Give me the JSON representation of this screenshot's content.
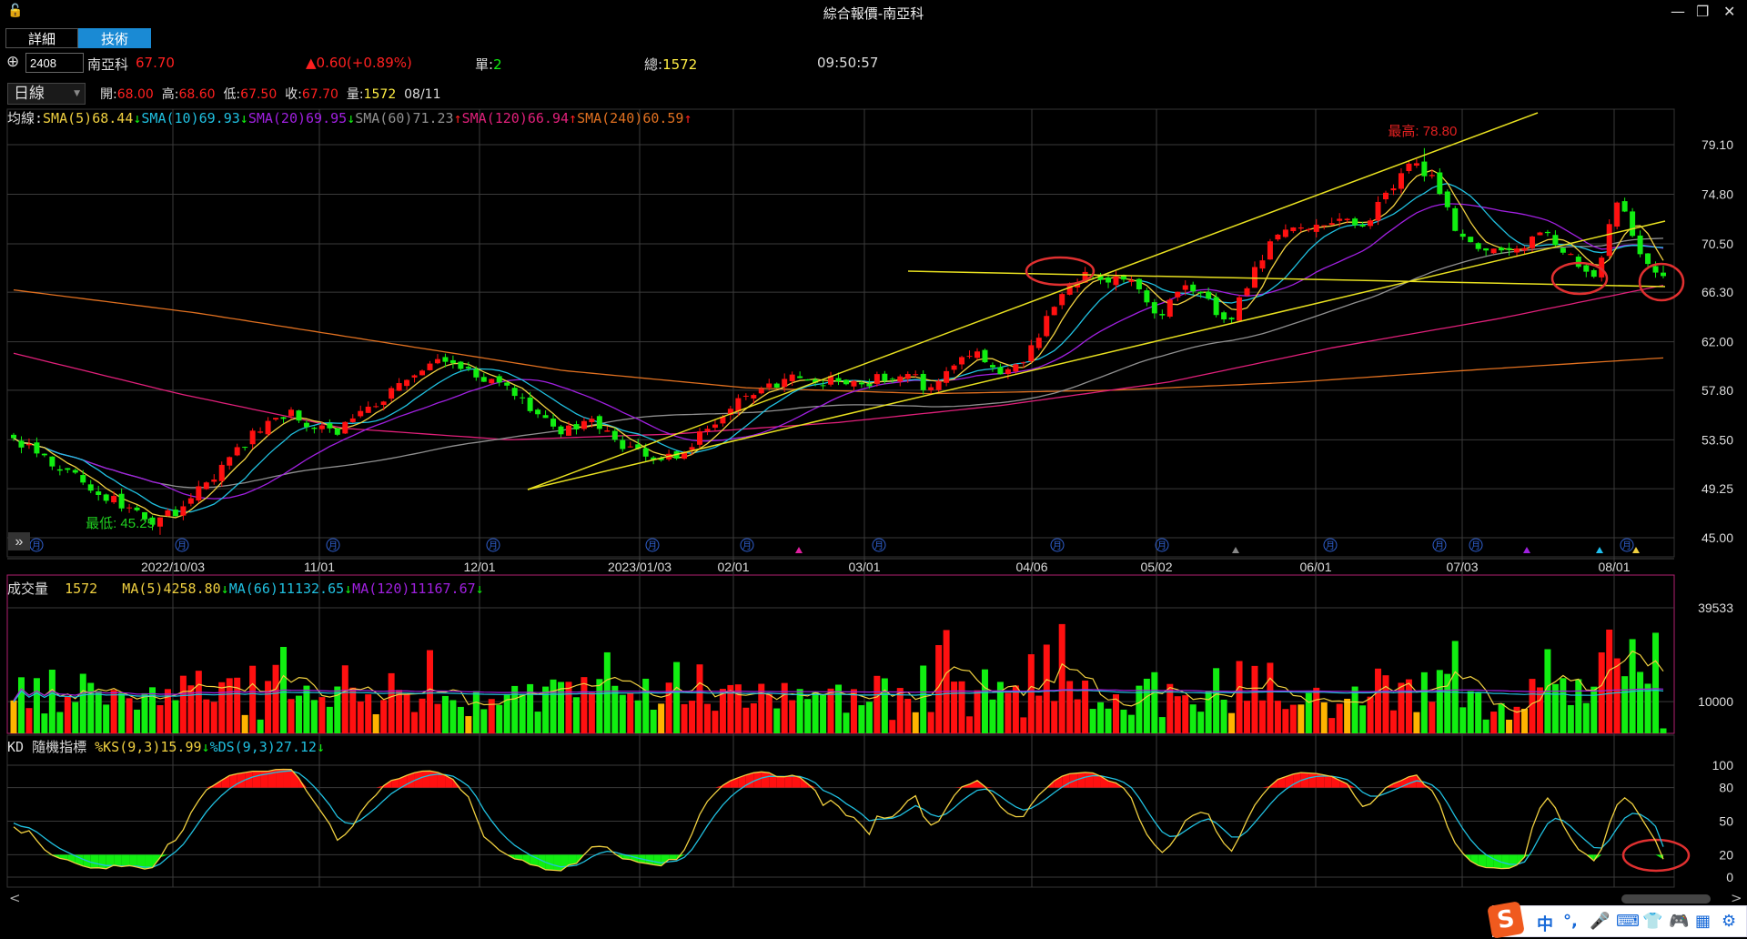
{
  "window": {
    "title": "綜合報價-南亞科",
    "lock_icon": "lock-icon",
    "minimize": "—",
    "restore": "❐",
    "close": "✕"
  },
  "tabs": [
    {
      "label": "詳細",
      "active": false
    },
    {
      "label": "技術",
      "active": true
    }
  ],
  "quote": {
    "add_icon": "⊕",
    "code": "2408",
    "name": "南亞科",
    "price": "67.70",
    "change": "▲0.60(+0.89%)",
    "single_label": "單:",
    "single": "2",
    "total_label": "總:",
    "total": "1572",
    "time": "09:50:57"
  },
  "period": {
    "selected": "日線",
    "open_label": "開:",
    "open": "68.00",
    "high_label": "高:",
    "high": "68.60",
    "low_label": "低:",
    "low": "67.50",
    "close_label": "收:",
    "close": "67.70",
    "volume_label": "量:",
    "volume": "1572",
    "date": "08/11"
  },
  "colors": {
    "up": "#ff1010",
    "down": "#11ee11",
    "flat": "#ffb400",
    "sma5": "#f0d040",
    "sma10": "#20c0e0",
    "sma20": "#a020e0",
    "sma60": "#909090",
    "sma120": "#e0207a",
    "sma240": "#e07020",
    "trend": "#e8e020",
    "grid": "#3a3a3a",
    "annotation": "#e03030"
  },
  "price_chart": {
    "legend_prefix": "均線:",
    "legend": [
      {
        "label": "SMA(5)",
        "value": "68.44",
        "arrow": "↓",
        "color": "#f0d040",
        "arrow_color": "#11ee11"
      },
      {
        "label": "SMA(10)",
        "value": "69.93",
        "arrow": "↓",
        "color": "#20c0e0",
        "arrow_color": "#11ee11"
      },
      {
        "label": "SMA(20)",
        "value": "69.95",
        "arrow": "↓",
        "color": "#a020e0",
        "arrow_color": "#11ee11"
      },
      {
        "label": "SMA(60)",
        "value": "71.23",
        "arrow": "↑",
        "color": "#909090",
        "arrow_color": "#ff2020"
      },
      {
        "label": "SMA(120)",
        "value": "66.94",
        "arrow": "↑",
        "color": "#e0207a",
        "arrow_color": "#ff2020"
      },
      {
        "label": "SMA(240)",
        "value": "60.59",
        "arrow": "↑",
        "color": "#e07020",
        "arrow_color": "#ff2020"
      }
    ],
    "y_labels": [
      "79.10",
      "74.80",
      "70.50",
      "66.30",
      "62.00",
      "57.80",
      "53.50",
      "49.25",
      "45.00"
    ],
    "x_labels": [
      "2022/10/03",
      "11/01",
      "12/01",
      "2023/01/03",
      "02/01",
      "03/01",
      "04/06",
      "05/02",
      "06/01",
      "07/03",
      "08/01"
    ],
    "high_label": "最高: 78.80",
    "low_label": "最低: 45.25",
    "month_icon": "月",
    "expand_icon": "»"
  },
  "volume": {
    "title": "成交量",
    "value": "1572",
    "legend": [
      {
        "label": "MA(5)",
        "value": "4258.80",
        "arrow": "↓",
        "color": "#f0d040"
      },
      {
        "label": "MA(66)",
        "value": "11132.65",
        "arrow": "↓",
        "color": "#20c0e0"
      },
      {
        "label": "MA(120)",
        "value": "11167.67",
        "arrow": "↓",
        "color": "#a020e0"
      }
    ],
    "y_labels": [
      "39533",
      "10000"
    ]
  },
  "kd": {
    "title": "KD 隨機指標",
    "legend": [
      {
        "label": "%KS(9,3)",
        "value": "15.99",
        "arrow": "↓",
        "color": "#f0d040"
      },
      {
        "label": "%DS(9,3)",
        "value": "27.12",
        "arrow": "↓",
        "color": "#20c0e0"
      }
    ],
    "y_labels": [
      "100",
      "80",
      "50",
      "20",
      "0"
    ]
  },
  "scroll": {
    "left": "<",
    "right": ">"
  },
  "ime": {
    "items": [
      "中",
      "°,",
      "🎤",
      "⌨",
      "👕",
      "🎮",
      "▦",
      "⚙"
    ]
  },
  "chart_data": {
    "type": "candlestick",
    "y_range": [
      45.0,
      79.1
    ],
    "trading_days": 215,
    "close_keypoints": [
      53.2,
      52.5,
      51.1,
      50.0,
      48.7,
      47.5,
      46.3,
      47.2,
      49.0,
      51.0,
      53.0,
      55.0,
      55.9,
      54.8,
      54.0,
      55.4,
      56.8,
      58.3,
      59.8,
      60.5,
      59.3,
      58.5,
      57.4,
      55.5,
      54.0,
      55.4,
      54.0,
      52.5,
      51.6,
      52.0,
      54.0,
      55.9,
      57.4,
      58.2,
      58.8,
      58.5,
      58.8,
      58.3,
      59.0,
      59.3,
      57.8,
      59.5,
      61.6,
      58.8,
      60.3,
      63.6,
      67.0,
      68.0,
      67.4,
      67.0,
      64.1,
      67.0,
      65.6,
      63.6,
      67.5,
      70.9,
      72.3,
      71.9,
      72.5,
      71.9,
      75.2,
      77.6,
      76.2,
      71.4,
      69.9,
      69.9,
      70.5,
      71.4,
      69.4,
      67.5,
      74.3,
      69.9,
      67.7
    ],
    "sma120_keypoints": [
      61.0,
      57.5,
      54.5,
      53.5,
      54.0,
      55.0,
      56.5,
      58.5,
      61.5,
      64.0,
      66.9
    ],
    "sma240_keypoints": [
      66.5,
      64.5,
      62.0,
      59.5,
      58.0,
      57.5,
      57.8,
      58.5,
      59.6,
      60.6
    ],
    "volume_max": 39533,
    "kd_range": [
      0,
      100
    ]
  }
}
